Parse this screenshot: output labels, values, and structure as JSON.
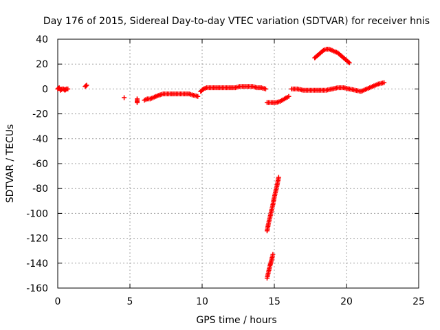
{
  "chart_data": {
    "type": "scatter",
    "title": "Day 176 of 2015, Sidereal Day-to-day VTEC variation (SDTVAR) for receiver hnis",
    "xlabel": "GPS time / hours",
    "ylabel": "SDTVAR / TECUs",
    "xlim": [
      0,
      25
    ],
    "ylim": [
      -160,
      40
    ],
    "xticks": [
      0,
      5,
      10,
      15,
      20,
      25
    ],
    "xtick_labels": [
      "0",
      "5",
      "10",
      "15",
      "20",
      "25"
    ],
    "yticks": [
      40,
      20,
      0,
      -20,
      -40,
      -60,
      -80,
      -100,
      -120,
      -140,
      -160
    ],
    "ytick_labels": [
      "40",
      "20",
      "0",
      "-20",
      "-40",
      "-60",
      "-80",
      "-100",
      "-120",
      "-140",
      "-160"
    ],
    "grid": true,
    "marker": "+",
    "color": "#ff0000",
    "series": [
      {
        "name": "SDTVAR",
        "segments": [
          {
            "x": [
              0.0,
              0.1,
              0.2,
              0.3,
              0.4,
              0.5,
              0.6,
              0.7
            ],
            "y": [
              0,
              1,
              -1,
              0,
              0,
              -1,
              0,
              0
            ]
          },
          {
            "x": [
              1.9,
              2.0
            ],
            "y": [
              2,
              3
            ]
          },
          {
            "x": [
              4.6
            ],
            "y": [
              -7
            ]
          },
          {
            "x": [
              5.5,
              5.5
            ],
            "y": [
              -8,
              -11
            ]
          },
          {
            "x": [
              6.0,
              6.2,
              6.4,
              6.6,
              6.8,
              7.0,
              7.3,
              7.6,
              7.9,
              8.2,
              8.5,
              8.8,
              9.1,
              9.4,
              9.7
            ],
            "y": [
              -9,
              -8,
              -8,
              -7,
              -6,
              -5,
              -4,
              -4,
              -4,
              -4,
              -4,
              -4,
              -4,
              -5,
              -6
            ]
          },
          {
            "x": [
              9.9,
              10.1,
              10.3,
              10.5,
              10.8,
              11.1,
              11.4,
              11.7,
              12.0,
              12.3,
              12.6,
              12.9,
              13.2,
              13.5,
              13.8,
              14.1,
              14.4
            ],
            "y": [
              -2,
              0,
              1,
              1,
              1,
              1,
              1,
              1,
              1,
              1,
              2,
              2,
              2,
              2,
              1,
              1,
              0
            ]
          },
          {
            "x": [
              14.5,
              14.8,
              15.1,
              15.4,
              15.7,
              16.0
            ],
            "y": [
              -11,
              -11,
              -11,
              -10,
              -8,
              -6
            ]
          },
          {
            "x": [
              16.2,
              16.6,
              17.0,
              17.4,
              17.8,
              18.2,
              18.6,
              19.0,
              19.4,
              19.8,
              20.2,
              20.6,
              21.0,
              21.4,
              21.8,
              22.2,
              22.6
            ],
            "y": [
              0,
              0,
              -1,
              -1,
              -1,
              -1,
              -1,
              0,
              1,
              1,
              0,
              -1,
              -2,
              0,
              2,
              4,
              5
            ]
          },
          {
            "x": [
              17.8,
              18.0,
              18.2,
              18.4,
              18.6,
              18.8,
              19.0,
              19.2,
              19.4,
              19.6,
              19.8,
              20.0,
              20.2
            ],
            "y": [
              25,
              27,
              29,
              31,
              32,
              32,
              31,
              30,
              29,
              27,
              25,
              23,
              21
            ]
          },
          {
            "x": [
              14.5,
              14.6,
              14.7,
              14.8,
              14.9,
              15.0,
              15.1,
              15.2,
              15.3
            ],
            "y": [
              -114,
              -108,
              -103,
              -98,
              -93,
              -87,
              -82,
              -77,
              -71
            ]
          },
          {
            "x": [
              14.5,
              14.6,
              14.7,
              14.8,
              14.9
            ],
            "y": [
              -152,
              -147,
              -142,
              -138,
              -133
            ]
          }
        ]
      }
    ]
  }
}
